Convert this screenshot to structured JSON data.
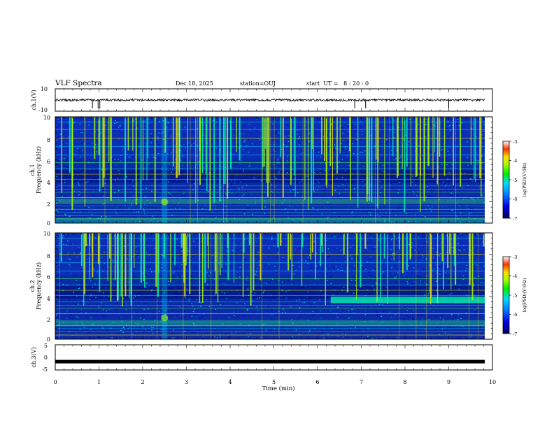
{
  "header": {
    "title": "VLF Spectra",
    "date": "Dec.18, 2025",
    "station": "station=OUJ",
    "start": "start  UT =   8 : 20 : 0"
  },
  "chart_data": [
    {
      "type": "line",
      "name": "ch1-waveform",
      "ylabel": "ch.1(V)",
      "ylim": [
        -10,
        10
      ],
      "y_ticks": [
        "10",
        "-10"
      ],
      "baseline": 0,
      "spikes_min": [
        0.85,
        0.98,
        1.02,
        6.85,
        7.1,
        9.0
      ]
    },
    {
      "type": "heatmap",
      "name": "ch1-spectrogram",
      "ylabel_channel": "ch.1",
      "ylabel": "Frequency (kHz)",
      "ylim": [
        0,
        10
      ],
      "y_ticks": [
        "0",
        "2",
        "4",
        "6",
        "8",
        "10"
      ],
      "xlim": [
        0,
        10
      ],
      "colorbar": {
        "label": "log(PSD)(V²/Hz)",
        "range": [
          -7,
          -3
        ],
        "ticks": [
          "-3",
          "-4",
          "-5",
          "-6",
          "-7"
        ]
      },
      "noise_band_khz": [
        1.8,
        2.3
      ],
      "burst_time_min": 2.5
    },
    {
      "type": "heatmap",
      "name": "ch2-spectrogram",
      "ylabel_channel": "ch.2",
      "ylabel": "Frequency (kHz)",
      "ylim": [
        0,
        10
      ],
      "y_ticks": [
        "0",
        "2",
        "4",
        "6",
        "8",
        "10"
      ],
      "xlim": [
        0,
        10
      ],
      "colorbar": {
        "label": "log(PSD)(V²/Hz)",
        "range": [
          -7,
          -3
        ],
        "ticks": [
          "-3",
          "-4",
          "-5",
          "-6",
          "-7"
        ]
      },
      "enhanced_band_khz": [
        3.4,
        4.0
      ],
      "enhanced_from_min": 6.3,
      "burst_time_min": 2.5
    },
    {
      "type": "line",
      "name": "ch3-waveform",
      "ylabel": "ch.3(V)",
      "ylim": [
        -5,
        5
      ],
      "y_ticks": [
        "5",
        "0",
        "-5"
      ],
      "level": -1.7
    }
  ],
  "xaxis": {
    "label": "Time (min)",
    "xlim": [
      0,
      10
    ],
    "ticks": [
      "0",
      "1",
      "2",
      "3",
      "4",
      "5",
      "6",
      "7",
      "8",
      "9",
      "10"
    ]
  },
  "colors": {
    "spec_bg": "#0a2aa6",
    "colormap": [
      "#1a0077",
      "#0000cc",
      "#0044ff",
      "#00aaff",
      "#00ffaa",
      "#00ee00",
      "#aaff00",
      "#ffee00",
      "#ff8800",
      "#ff0000",
      "#ffffff"
    ]
  }
}
